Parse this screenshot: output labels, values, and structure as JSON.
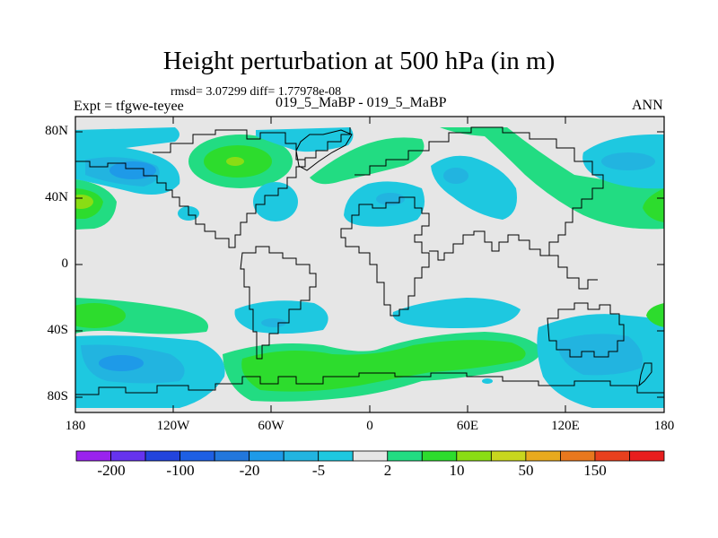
{
  "figure": {
    "title": "Height perturbation at 500 hPa (in m)",
    "stats": "rmsd= 3.07299 diff= 1.77978e-08",
    "expt": "Expt = tfgwe-teyee",
    "subtitle": "019_5_MaBP - 019_5_MaBP",
    "season": "ANN"
  },
  "axes": {
    "y_ticks": [
      "80N",
      "40N",
      "0",
      "40S",
      "80S"
    ],
    "x_ticks": [
      "180",
      "120W",
      "60W",
      "0",
      "60E",
      "120E",
      "180"
    ]
  },
  "colorbar": {
    "labels": [
      "-200",
      "-100",
      "-20",
      "-5",
      "2",
      "10",
      "50",
      "150"
    ],
    "colors": [
      "#9a22ee",
      "#6633ee",
      "#2244dd",
      "#1e5fe3",
      "#2277dd",
      "#1e9ae8",
      "#22b4e0",
      "#1ec8e0",
      "#e6e6e6",
      "#22dc82",
      "#2ddc2d",
      "#8add14",
      "#c8d61e",
      "#e8aa1e",
      "#e8781e",
      "#e8401e",
      "#e81e1e"
    ]
  },
  "colors": {
    "land_fill": "#e6e6e6",
    "cyan": "#1ec8e0",
    "light_blue": "#22b4e0",
    "blue": "#1e9ae8",
    "green_light": "#22dc82",
    "green": "#2ddc2d",
    "yellow_green": "#8add14"
  }
}
